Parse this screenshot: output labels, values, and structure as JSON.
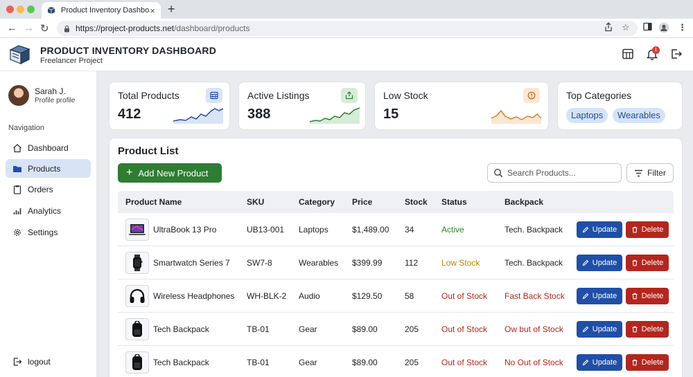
{
  "browser": {
    "tab_title": "Product Inventory Dashboard",
    "url_scheme": "https://",
    "url_host": "project-products.net",
    "url_path": "/dashboard/products"
  },
  "header": {
    "title": "PRODUCT INVENTORY DASHBOARD",
    "subtitle": "Freelancer Project",
    "notification_count": "1"
  },
  "sidebar": {
    "user_name": "Sarah J.",
    "user_sub": "Profile profile",
    "nav_heading": "Navigation",
    "items": [
      {
        "label": "Dashboard",
        "icon": "home-icon"
      },
      {
        "label": "Products",
        "icon": "folder-icon",
        "active": true
      },
      {
        "label": "Orders",
        "icon": "clipboard-icon"
      },
      {
        "label": "Analytics",
        "icon": "bar-chart-icon"
      },
      {
        "label": "Settings",
        "icon": "gear-icon"
      }
    ],
    "logout_label": "logout"
  },
  "cards": {
    "total_products": {
      "title": "Total Products",
      "value": "412"
    },
    "active_listings": {
      "title": "Active Listings",
      "value": "388"
    },
    "low_stock": {
      "title": "Low Stock",
      "value": "15"
    },
    "top_categories": {
      "title": "Top Categories",
      "chips": [
        "Laptops",
        "Wearables"
      ]
    }
  },
  "product_list": {
    "title": "Product List",
    "add_label": "Add New Product",
    "search_placeholder": "Search Products...",
    "filter_label": "Filter",
    "columns": [
      "Product Name",
      "SKU",
      "Category",
      "Price",
      "Stock",
      "Status",
      "Backpack"
    ],
    "update_label": "Update",
    "delete_label": "Delete",
    "rows": [
      {
        "name": "UltraBook 13 Pro",
        "sku": "UB13-001",
        "category": "Laptops",
        "price": "$1,489.00",
        "stock": "34",
        "status": "Active",
        "backpack": "Tech. Backpack",
        "thumb": "laptop-icon"
      },
      {
        "name": "Smartwatch Series 7",
        "sku": "SW7-8",
        "category": "Wearables",
        "price": "$399.99",
        "stock": "112",
        "status": "Low Stock",
        "backpack": "Tech. Backpack",
        "thumb": "watch-icon"
      },
      {
        "name": "Wireless Headphones",
        "sku": "WH-BLK-2",
        "category": "Audio",
        "price": "$129.50",
        "stock": "58",
        "status": "Out of Stock",
        "backpack": "Fast Back Stock",
        "thumb": "headphones-icon"
      },
      {
        "name": "Tech Backpack",
        "sku": "TB-01",
        "category": "Gear",
        "price": "$89.00",
        "stock": "205",
        "status": "Out of Stock",
        "backpack": "Ow but of Stock",
        "thumb": "backpack-icon"
      },
      {
        "name": "Tech Backpack",
        "sku": "TB-01",
        "category": "Gear",
        "price": "$89.00",
        "stock": "205",
        "status": "Out of Stock",
        "backpack": "No Out of Stock",
        "thumb": "backpack-icon"
      }
    ]
  },
  "colors": {
    "primary_blue": "#1f4fa8",
    "success_green": "#2e7d32",
    "danger_red": "#b3261e",
    "warning": "#b58900",
    "active_nav_bg": "#d8e4f6"
  }
}
